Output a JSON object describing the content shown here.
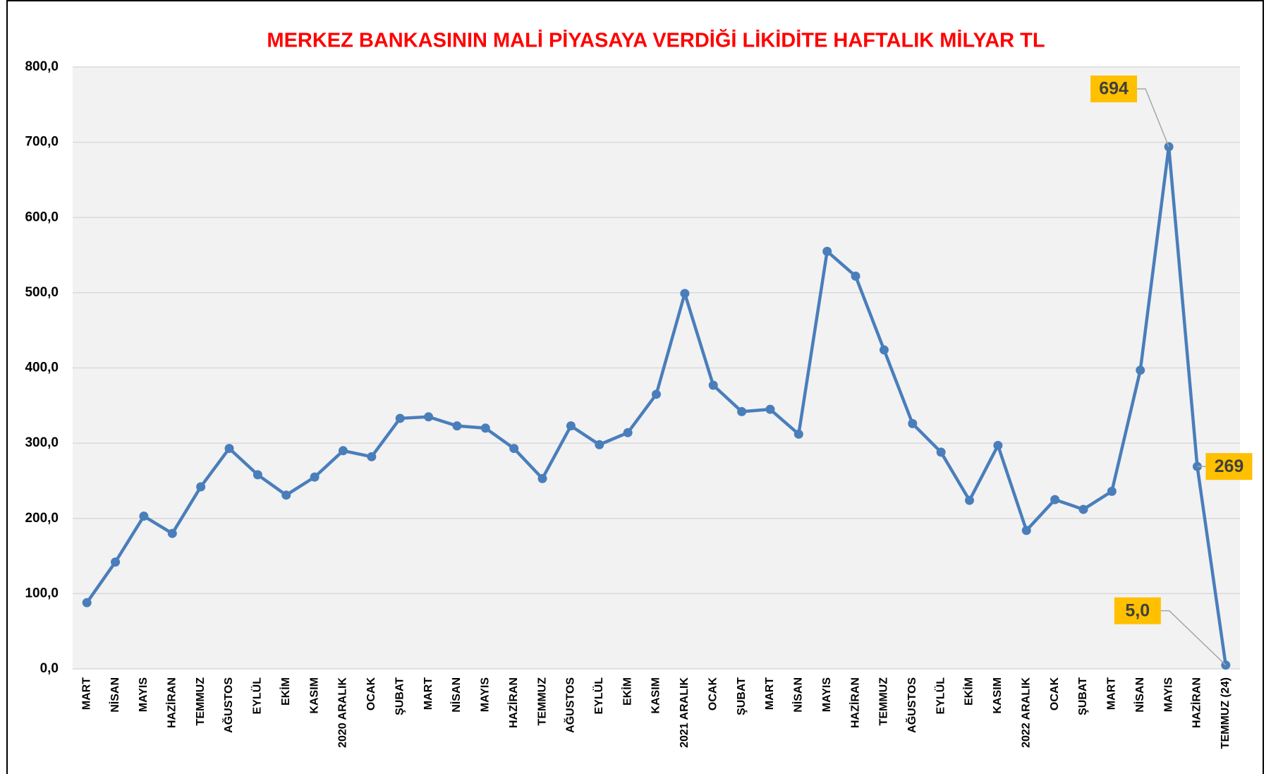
{
  "chart_data": {
    "type": "line",
    "title": "MERKEZ BANKASININ MALİ PİYASAYA VERDİĞİ LİKİDİTE HAFTALIK MİLYAR TL",
    "categories": [
      "MART",
      "NİSAN",
      "MAYIS",
      "HAZİRAN",
      "TEMMUZ",
      "AĞUSTOS",
      "EYLÜL",
      "EKİM",
      "KASIM",
      "2020 ARALIK",
      "OCAK",
      "ŞUBAT",
      "MART",
      "NİSAN",
      "MAYIS",
      "HAZİRAN",
      "TEMMUZ",
      "AĞUSTOS",
      "EYLÜL",
      "EKİM",
      "KASIM",
      "2021 ARALIK",
      "OCAK",
      "ŞUBAT",
      "MART",
      "NİSAN",
      "MAYIS",
      "HAZİRAN",
      "TEMMUZ",
      "AĞUSTOS",
      "EYLÜL",
      "EKİM",
      "KASIM",
      "2022 ARALIK",
      "OCAK",
      "ŞUBAT",
      "MART",
      "NİSAN",
      "MAYIS",
      "HAZİRAN",
      "TEMMUZ (24)"
    ],
    "values": [
      88,
      142,
      203,
      180,
      242,
      293,
      258,
      231,
      255,
      290,
      282,
      333,
      335,
      323,
      320,
      293,
      253,
      323,
      298,
      314,
      365,
      499,
      377,
      342,
      345,
      312,
      555,
      522,
      424,
      326,
      288,
      224,
      297,
      184,
      225,
      212,
      236,
      397,
      694,
      269,
      5
    ],
    "value_labels": [
      null,
      null,
      null,
      null,
      null,
      null,
      null,
      null,
      null,
      null,
      null,
      null,
      null,
      null,
      null,
      null,
      null,
      null,
      null,
      null,
      null,
      null,
      null,
      null,
      null,
      null,
      null,
      null,
      null,
      null,
      null,
      null,
      null,
      null,
      null,
      null,
      null,
      null,
      "694",
      "269",
      "5,0"
    ],
    "color": "#4a7ebb",
    "ylim": [
      0,
      800
    ],
    "yticks": [
      {
        "value": 0,
        "label": "0,0"
      },
      {
        "value": 100,
        "label": "100,0"
      },
      {
        "value": 200,
        "label": "200,0"
      },
      {
        "value": 300,
        "label": "300,0"
      },
      {
        "value": 400,
        "label": "400,0"
      },
      {
        "value": 500,
        "label": "500,0"
      },
      {
        "value": 600,
        "label": "600,0"
      },
      {
        "value": 700,
        "label": "700,0"
      },
      {
        "value": 800,
        "label": "800,0"
      }
    ],
    "grid": true
  }
}
